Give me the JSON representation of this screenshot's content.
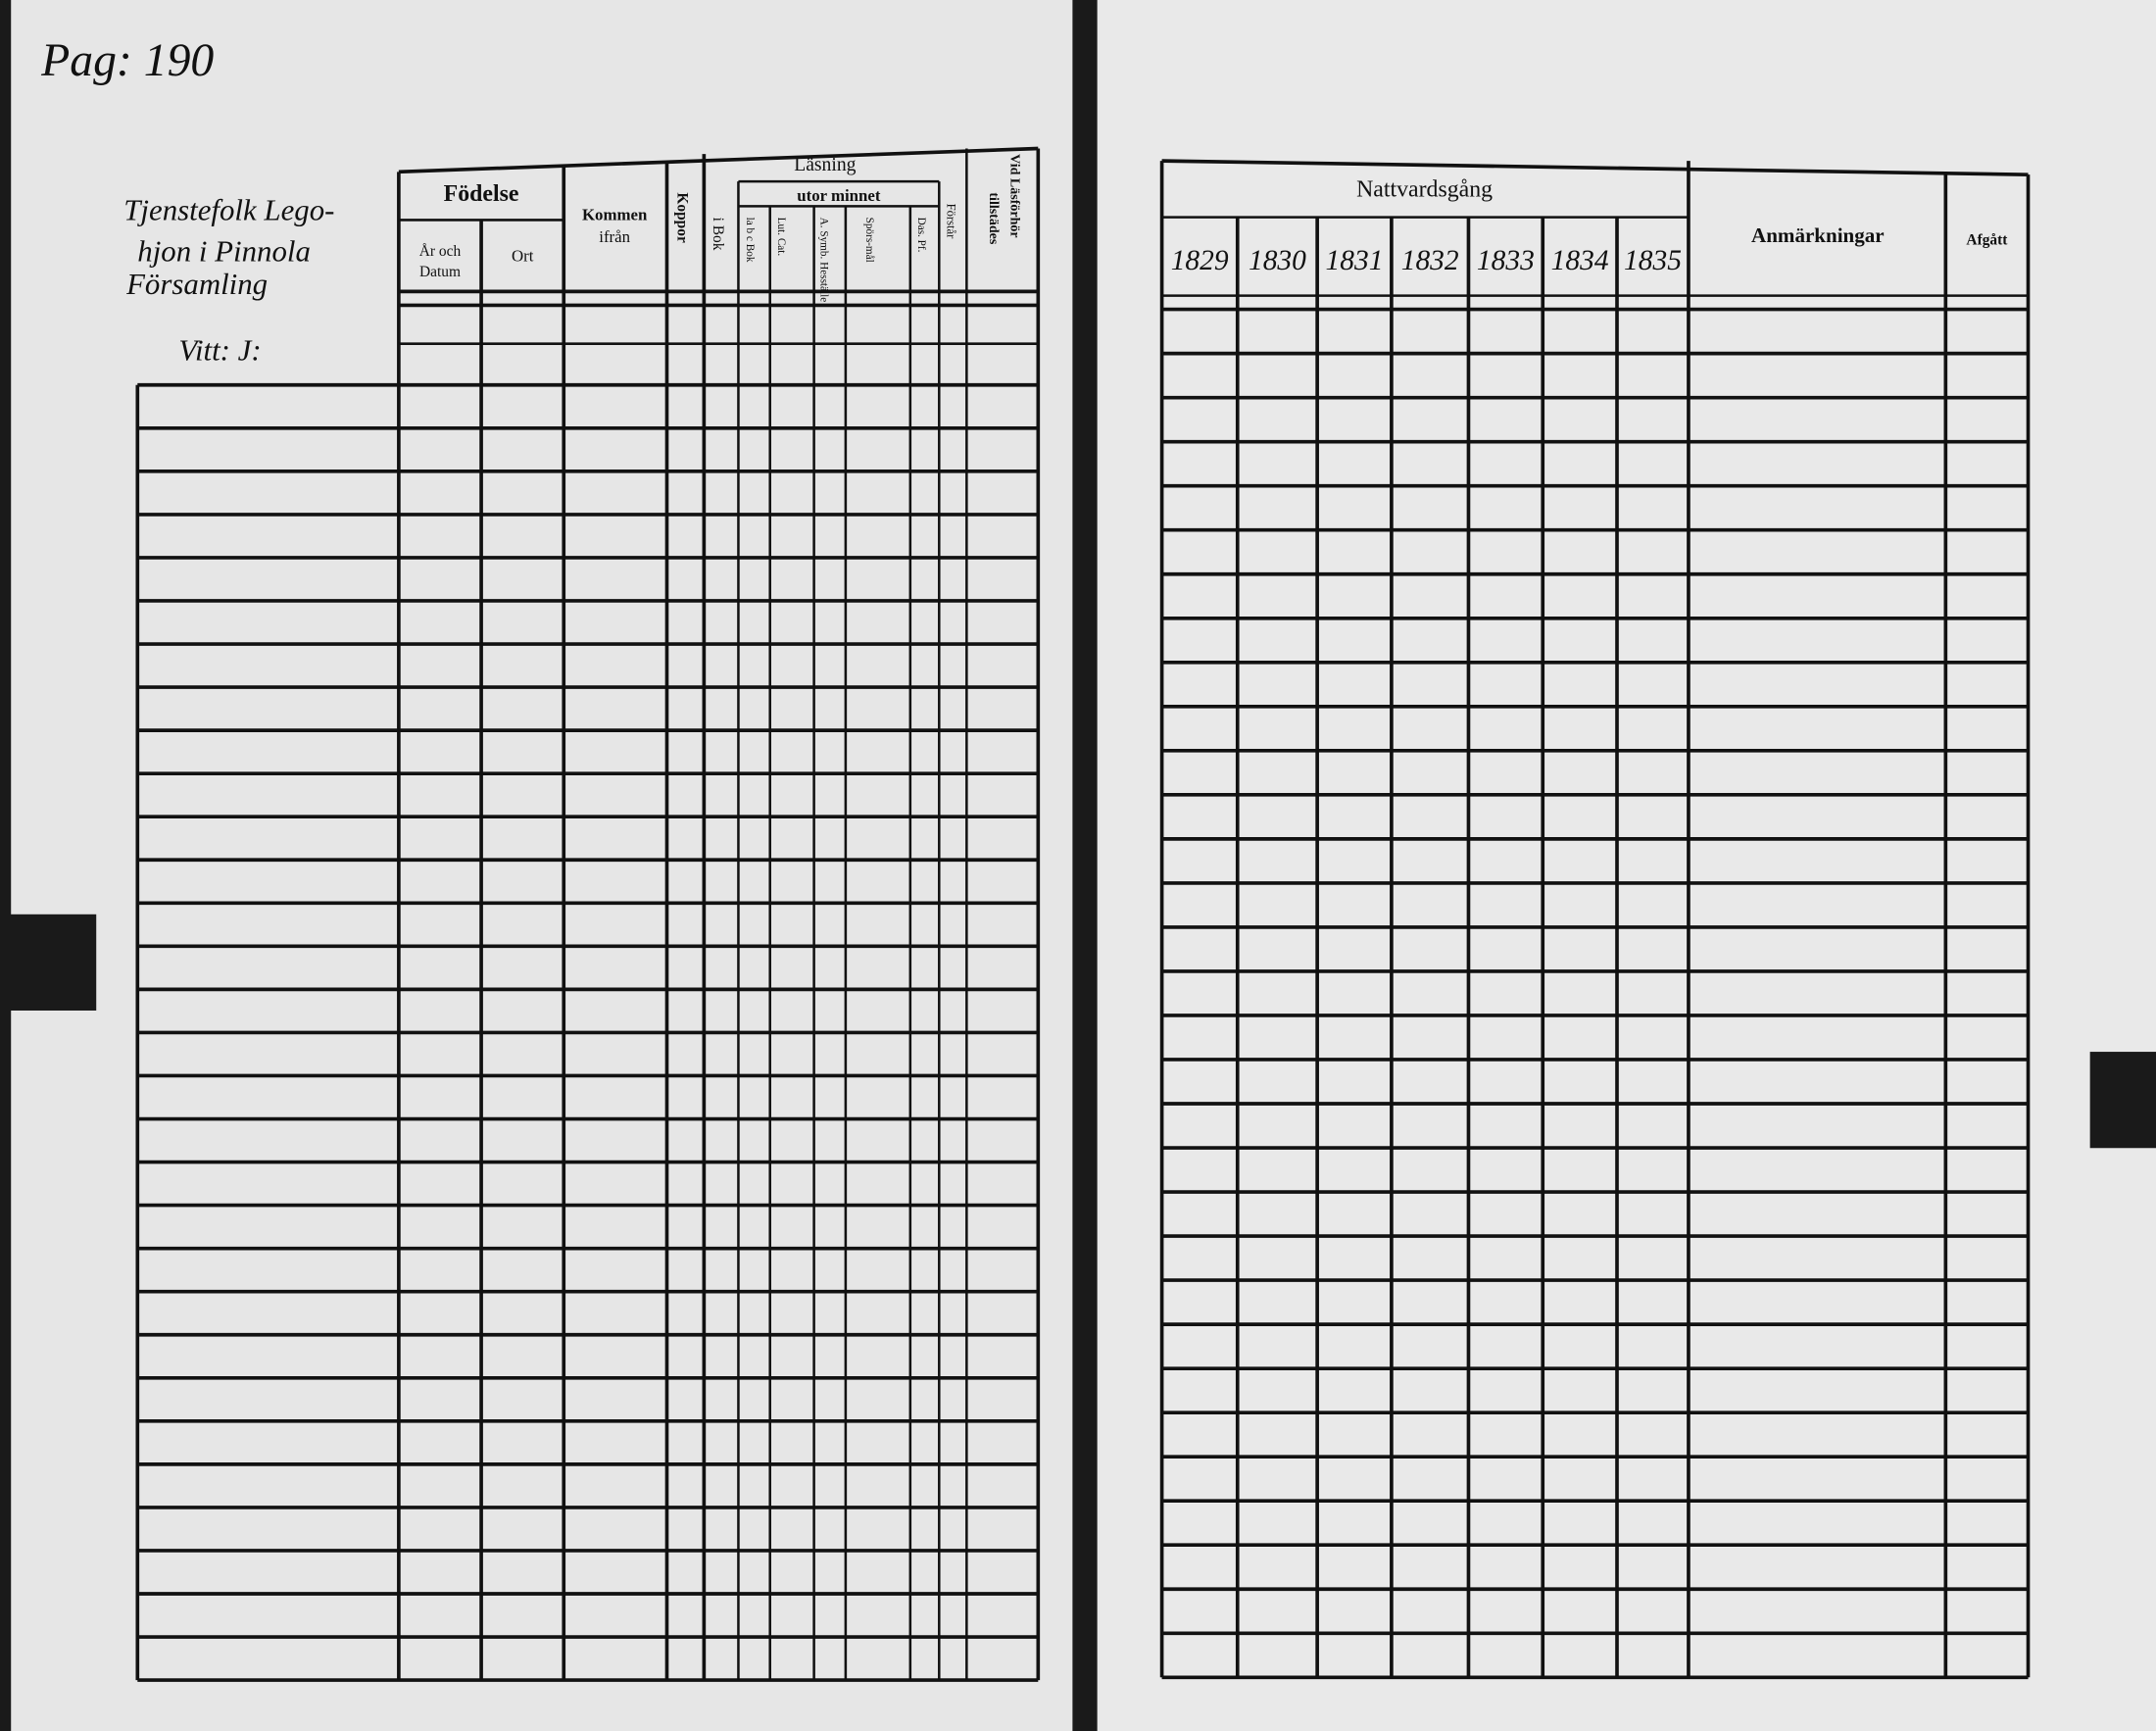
{
  "page_number": "Pag: 190",
  "left_page": {
    "heading_lines": [
      "Tjenstefolk Lego-",
      "hjon i Pinnola",
      "Församling",
      "Vitt: J:"
    ],
    "birth": {
      "title": "Födelse",
      "date": [
        "År och",
        "Datum"
      ],
      "place": "Ort"
    },
    "came_from": [
      "Kommen",
      "ifrån"
    ],
    "smallpox": "Koppor",
    "reading": {
      "title": "Läsning",
      "in_book": "i Bok",
      "by_heart": "utor minnet",
      "by_heart_columns": [
        "la b c Bok",
        "Lut. Cat.",
        "A. Symb. Hesställe",
        "Spörs-mål",
        "Das. Pf."
      ],
      "understands": "Förstår"
    },
    "present": [
      "Vid Läsförhör",
      "tillstädes"
    ]
  },
  "right_page": {
    "communion": "Nattvardsgång",
    "years": [
      "1829",
      "1830",
      "1831",
      "1832",
      "1833",
      "1834",
      "1835"
    ],
    "remarks": "Anmärkningar",
    "departed": "Afgått"
  }
}
